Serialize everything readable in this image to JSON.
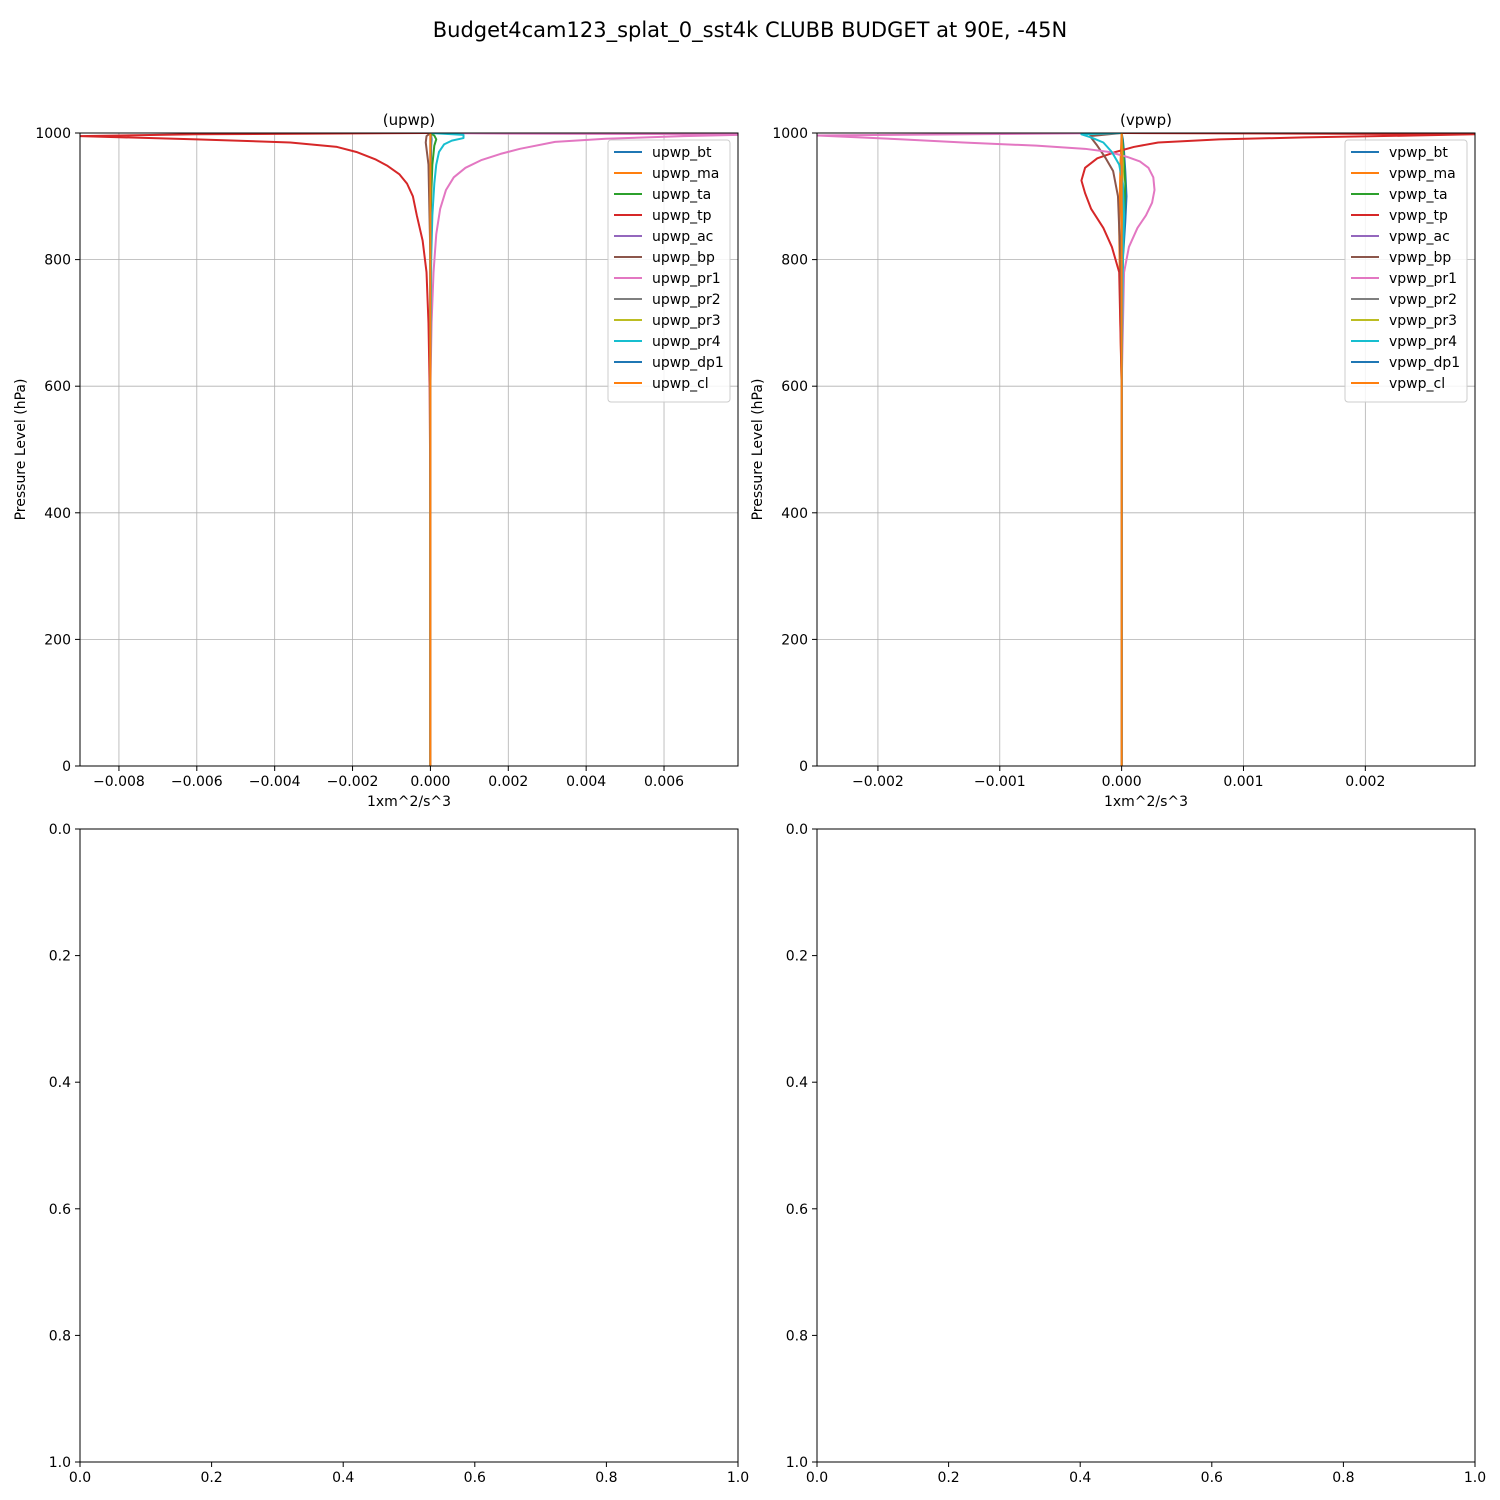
{
  "figure": {
    "title": "Budget4cam123_splat_0_sst4k CLUBB BUDGET at 90E, -45N"
  },
  "chart_data": [
    {
      "type": "line",
      "title": "(upwp)",
      "xlabel": "1xm^2/s^3",
      "ylabel": "Pressure Level (hPa)",
      "xlim": [
        -0.009,
        0.0079
      ],
      "ylim": [
        1000,
        0
      ],
      "y_inverted": true,
      "grid": true,
      "legend_position": "upper right",
      "xticks": [
        -0.008,
        -0.006,
        -0.004,
        -0.002,
        0.0,
        0.002,
        0.004,
        0.006
      ],
      "xtick_labels": [
        "−0.008",
        "−0.006",
        "−0.004",
        "−0.002",
        "0.000",
        "0.002",
        "0.004",
        "0.006"
      ],
      "yticks": [
        0,
        200,
        400,
        600,
        800,
        1000
      ],
      "ytick_labels": [
        "0",
        "200",
        "400",
        "600",
        "800",
        "1000"
      ],
      "series": [
        {
          "name": "upwp_bt",
          "color": "#1f77b4",
          "x": [
            0,
            0,
            0,
            0,
            0,
            1e-05,
            2e-05,
            3e-05,
            2e-05,
            0
          ],
          "y": [
            0,
            300,
            600,
            800,
            900,
            950,
            980,
            990,
            996,
            1000
          ]
        },
        {
          "name": "upwp_ma",
          "color": "#ff7f0e",
          "x": [
            0,
            0,
            0,
            0,
            0,
            0,
            0,
            1e-05,
            0
          ],
          "y": [
            0,
            300,
            600,
            800,
            900,
            950,
            980,
            995,
            1000
          ]
        },
        {
          "name": "upwp_ta",
          "color": "#2ca02c",
          "x": [
            0,
            0,
            0,
            0,
            2e-05,
            5e-05,
            0.0001,
            0.00015,
            0.0001,
            0
          ],
          "y": [
            0,
            300,
            600,
            800,
            900,
            950,
            980,
            990,
            996,
            1000
          ]
        },
        {
          "name": "upwp_tp",
          "color": "#d62728",
          "x": [
            0,
            0,
            -2e-05,
            -5e-05,
            -0.0001,
            -0.0002,
            -0.00035,
            -0.00045,
            -0.0006,
            -0.0008,
            -0.0011,
            -0.0014,
            -0.0019,
            -0.0024,
            -0.0036,
            -0.006,
            -0.009,
            -0.006,
            0
          ],
          "y": [
            0,
            400,
            600,
            700,
            780,
            830,
            870,
            900,
            920,
            935,
            948,
            958,
            970,
            978,
            985,
            990,
            995,
            998,
            1000
          ]
        },
        {
          "name": "upwp_ac",
          "color": "#9467bd",
          "x": [
            0,
            0,
            0,
            0,
            0,
            0
          ],
          "y": [
            0,
            300,
            600,
            800,
            950,
            1000
          ]
        },
        {
          "name": "upwp_bp",
          "color": "#8c564b",
          "x": [
            0,
            0,
            0,
            0,
            -5e-05,
            -0.00012,
            -0.0001,
            0
          ],
          "y": [
            0,
            300,
            600,
            800,
            950,
            985,
            995,
            1000
          ]
        },
        {
          "name": "upwp_pr1",
          "color": "#e377c2",
          "x": [
            0,
            0,
            3e-05,
            8e-05,
            0.00015,
            0.00025,
            0.0004,
            0.0006,
            0.0009,
            0.0013,
            0.0018,
            0.0023,
            0.0032,
            0.0045,
            0.0065,
            0.0079,
            0.0079,
            0.002,
            0
          ],
          "y": [
            0,
            600,
            700,
            780,
            840,
            880,
            910,
            930,
            945,
            957,
            967,
            975,
            986,
            991,
            995,
            997,
            998,
            999,
            1000
          ]
        },
        {
          "name": "upwp_pr2",
          "color": "#7f7f7f",
          "x": [
            0,
            0,
            0,
            0,
            0,
            0,
            0
          ],
          "y": [
            0,
            300,
            600,
            800,
            950,
            990,
            1000
          ]
        },
        {
          "name": "upwp_pr3",
          "color": "#bcbd22",
          "x": [
            0,
            0,
            0,
            0,
            0,
            1e-05,
            0
          ],
          "y": [
            0,
            300,
            600,
            800,
            950,
            990,
            1000
          ]
        },
        {
          "name": "upwp_pr4",
          "color": "#17becf",
          "x": [
            0,
            0,
            2e-05,
            5e-05,
            0.0001,
            0.00015,
            0.00022,
            0.00035,
            0.00055,
            0.00085,
            0.00085,
            0
          ],
          "y": [
            0,
            600,
            800,
            870,
            920,
            950,
            970,
            982,
            988,
            992,
            997,
            1000
          ]
        },
        {
          "name": "upwp_dp1",
          "color": "#1f77b4",
          "x": [
            0,
            0,
            0,
            0,
            0,
            1e-05,
            0
          ],
          "y": [
            0,
            300,
            600,
            800,
            950,
            990,
            1000
          ]
        },
        {
          "name": "upwp_cl",
          "color": "#ff7f0e",
          "x": [
            0,
            0,
            0,
            0,
            0,
            0,
            0
          ],
          "y": [
            0,
            300,
            600,
            800,
            950,
            990,
            1000
          ]
        }
      ]
    },
    {
      "type": "line",
      "title": "(vpwp)",
      "xlabel": "1xm^2/s^3",
      "ylabel": "Pressure Level (hPa)",
      "xlim": [
        -0.0025,
        0.0029
      ],
      "ylim": [
        1000,
        0
      ],
      "y_inverted": true,
      "grid": true,
      "legend_position": "upper right",
      "xticks": [
        -0.002,
        -0.001,
        0.0,
        0.001,
        0.002
      ],
      "xtick_labels": [
        "−0.002",
        "−0.001",
        "0.000",
        "0.001",
        "0.002"
      ],
      "yticks": [
        0,
        200,
        400,
        600,
        800,
        1000
      ],
      "ytick_labels": [
        "0",
        "200",
        "400",
        "600",
        "800",
        "1000"
      ],
      "series": [
        {
          "name": "vpwp_bt",
          "color": "#1f77b4",
          "x": [
            0,
            0,
            1e-05,
            3e-05,
            4e-05,
            3e-05,
            2e-05,
            1e-05,
            0
          ],
          "y": [
            0,
            600,
            800,
            860,
            900,
            940,
            970,
            990,
            1000
          ]
        },
        {
          "name": "vpwp_ma",
          "color": "#ff7f0e",
          "x": [
            0,
            0,
            -1e-05,
            -2e-05,
            -1e-05,
            0
          ],
          "y": [
            0,
            600,
            700,
            850,
            950,
            1000
          ]
        },
        {
          "name": "vpwp_ta",
          "color": "#2ca02c",
          "x": [
            0,
            0,
            1e-05,
            2e-05,
            3e-05,
            1e-05,
            0
          ],
          "y": [
            0,
            600,
            800,
            870,
            920,
            980,
            1000
          ]
        },
        {
          "name": "vpwp_tp",
          "color": "#d62728",
          "x": [
            0,
            0,
            -2e-05,
            -8e-05,
            -0.00015,
            -0.00025,
            -0.0003,
            -0.00033,
            -0.0003,
            -0.0002,
            -5e-05,
            0.0001,
            0.0003,
            0.0008,
            0.0015,
            0.0024,
            0.0029,
            0
          ],
          "y": [
            0,
            600,
            780,
            820,
            850,
            880,
            905,
            925,
            945,
            960,
            970,
            978,
            985,
            990,
            993,
            996,
            998,
            1000
          ]
        },
        {
          "name": "vpwp_ac",
          "color": "#9467bd",
          "x": [
            0,
            0,
            0,
            0,
            0,
            0
          ],
          "y": [
            0,
            300,
            600,
            800,
            950,
            1000
          ]
        },
        {
          "name": "vpwp_bp",
          "color": "#8c564b",
          "x": [
            0,
            0,
            -1e-05,
            -3e-05,
            -7e-05,
            -0.00013,
            -0.0002,
            -0.00026,
            0
          ],
          "y": [
            0,
            600,
            800,
            900,
            940,
            960,
            980,
            995,
            1000
          ]
        },
        {
          "name": "vpwp_pr1",
          "color": "#e377c2",
          "x": [
            0,
            0,
            2e-05,
            6e-05,
            0.00013,
            0.0002,
            0.00025,
            0.00027,
            0.00026,
            0.00022,
            0.00015,
            5e-05,
            -0.0001,
            -0.0003,
            -0.0007,
            -0.0013,
            -0.0018,
            -0.0025,
            0
          ],
          "y": [
            0,
            600,
            780,
            820,
            850,
            870,
            890,
            910,
            930,
            945,
            955,
            962,
            970,
            975,
            980,
            985,
            990,
            996,
            1000
          ]
        },
        {
          "name": "vpwp_pr2",
          "color": "#7f7f7f",
          "x": [
            0,
            0,
            0,
            0,
            0,
            0
          ],
          "y": [
            0,
            300,
            600,
            800,
            950,
            1000
          ]
        },
        {
          "name": "vpwp_pr3",
          "color": "#bcbd22",
          "x": [
            0,
            0,
            0,
            0,
            1e-05,
            0
          ],
          "y": [
            0,
            300,
            600,
            800,
            950,
            1000
          ]
        },
        {
          "name": "vpwp_pr4",
          "color": "#17becf",
          "x": [
            0,
            0,
            1e-05,
            2e-05,
            1e-05,
            -2e-05,
            -8e-05,
            -0.00015,
            -0.00025,
            -0.00033,
            0
          ],
          "y": [
            0,
            600,
            800,
            870,
            920,
            950,
            970,
            985,
            993,
            998,
            1000
          ]
        },
        {
          "name": "vpwp_dp1",
          "color": "#1f77b4",
          "x": [
            0,
            0,
            0,
            0,
            0,
            0
          ],
          "y": [
            0,
            300,
            600,
            800,
            950,
            1000
          ]
        },
        {
          "name": "vpwp_cl",
          "color": "#ff7f0e",
          "x": [
            0,
            0,
            0,
            0,
            0,
            0
          ],
          "y": [
            0,
            300,
            600,
            800,
            950,
            1000
          ]
        }
      ]
    },
    {
      "type": "line",
      "title": "",
      "xlim": [
        0,
        1
      ],
      "ylim": [
        0,
        1
      ],
      "grid": false,
      "xticks": [
        0.0,
        0.2,
        0.4,
        0.6,
        0.8,
        1.0
      ],
      "xtick_labels": [
        "0.0",
        "0.2",
        "0.4",
        "0.6",
        "0.8",
        "1.0"
      ],
      "yticks": [
        0.0,
        0.2,
        0.4,
        0.6,
        0.8,
        1.0
      ],
      "ytick_labels": [
        "0.0",
        "0.2",
        "0.4",
        "0.6",
        "0.8",
        "1.0"
      ],
      "series": []
    },
    {
      "type": "line",
      "title": "",
      "xlim": [
        0,
        1
      ],
      "ylim": [
        0,
        1
      ],
      "grid": false,
      "xticks": [
        0.0,
        0.2,
        0.4,
        0.6,
        0.8,
        1.0
      ],
      "xtick_labels": [
        "0.0",
        "0.2",
        "0.4",
        "0.6",
        "0.8",
        "1.0"
      ],
      "yticks": [
        0.0,
        0.2,
        0.4,
        0.6,
        0.8,
        1.0
      ],
      "ytick_labels": [
        "0.0",
        "0.2",
        "0.4",
        "0.6",
        "0.8",
        "1.0"
      ],
      "series": []
    }
  ]
}
